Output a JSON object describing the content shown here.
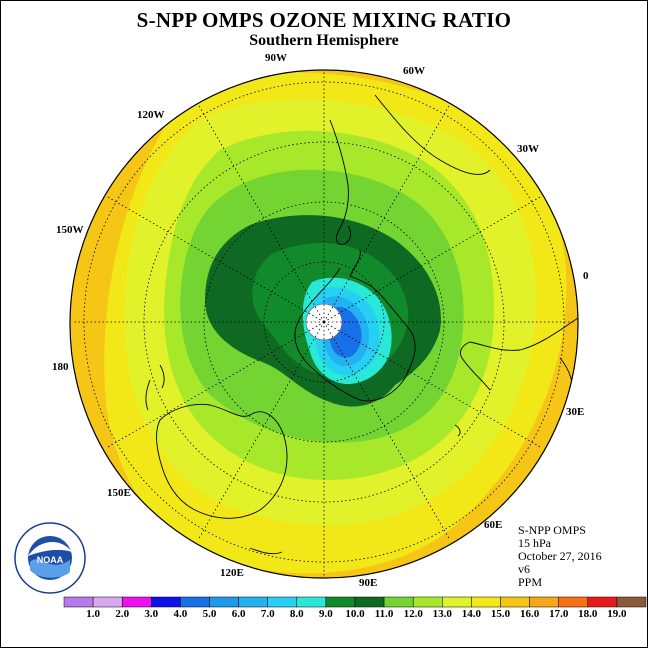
{
  "title": "S-NPP OMPS OZONE MIXING RATIO",
  "subtitle": "Southern Hemisphere",
  "map": {
    "projection": "south polar stereographic",
    "longitude_labels": [
      "90W",
      "60W",
      "30W",
      "0",
      "30E",
      "60E",
      "90E",
      "120E",
      "150E",
      "180",
      "150W",
      "120W"
    ]
  },
  "info": {
    "instrument": "S-NPP OMPS",
    "level": "15 hPa",
    "date": "October 27, 2016",
    "version": "v6",
    "units": "PPM"
  },
  "colorbar": {
    "labels": [
      "1.0",
      "2.0",
      "3.0",
      "4.0",
      "5.0",
      "6.0",
      "7.0",
      "8.0",
      "9.0",
      "10.0",
      "11.0",
      "12.0",
      "13.0",
      "14.0",
      "15.0",
      "16.0",
      "17.0",
      "18.0",
      "19.0"
    ],
    "colors": [
      "#b57bea",
      "#d8a8f0",
      "#ee10ee",
      "#1010e8",
      "#1870e8",
      "#1e9aec",
      "#22b2f2",
      "#26d0f2",
      "#2ae8d8",
      "#108a2a",
      "#0e6a22",
      "#74d432",
      "#a8e82a",
      "#e2f22a",
      "#f2e818",
      "#f6c616",
      "#f6a616",
      "#f67016",
      "#e61a1a",
      "#8a5a3a"
    ]
  },
  "logo": {
    "text": "NOAA"
  }
}
